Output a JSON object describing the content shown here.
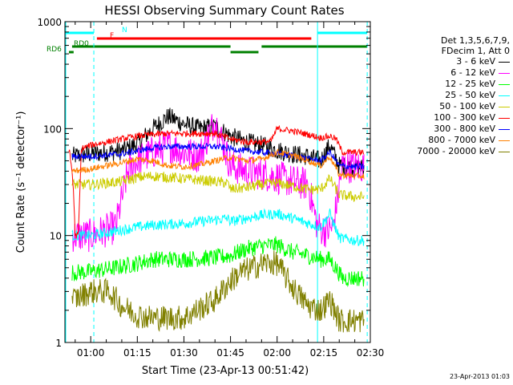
{
  "chart_data": {
    "type": "line",
    "title": "HESSI Observing Summary Count Rates",
    "xlabel": "Start Time (23-Apr-13 00:51:42)",
    "ylabel": "Count Rate (s⁻¹ detector⁻¹)",
    "y_scale": "log",
    "ylim": [
      1,
      1000
    ],
    "xlim_minutes": [
      51.7,
      150
    ],
    "x_ticks": [
      "01:00",
      "01:15",
      "01:30",
      "01:45",
      "02:00",
      "02:15",
      "02:30"
    ],
    "x_tick_minutes": [
      60,
      75,
      90,
      105,
      120,
      135,
      150
    ],
    "y_ticks": [
      "1",
      "10",
      "100",
      "1000"
    ],
    "y_tick_values": [
      1,
      10,
      100,
      1000
    ],
    "grid": false,
    "legend_position": "right",
    "legend_header": [
      "Det 1,3,5,6,7,9,",
      "FDecim 1, Att 0"
    ],
    "series": [
      {
        "name": "3 - 6 keV",
        "color": "#000000",
        "x": [
          54,
          60,
          70,
          75,
          80,
          85,
          90,
          95,
          100,
          105,
          110,
          115,
          120,
          125,
          130,
          134,
          137,
          140,
          145,
          148
        ],
        "values": [
          55,
          58,
          62,
          72,
          100,
          130,
          110,
          100,
          105,
          85,
          75,
          70,
          63,
          58,
          55,
          50,
          70,
          45,
          43,
          43
        ]
      },
      {
        "name": "6 - 12 keV",
        "color": "#ff00ff",
        "x": [
          54,
          60,
          68,
          72,
          75,
          80,
          85,
          90,
          95,
          100,
          105,
          110,
          115,
          120,
          125,
          130,
          133,
          136,
          138,
          141,
          145,
          148
        ],
        "values": [
          10,
          10,
          12,
          40,
          50,
          60,
          70,
          60,
          55,
          120,
          45,
          40,
          38,
          35,
          32,
          30,
          12,
          11,
          12,
          45,
          44,
          44
        ]
      },
      {
        "name": "12 - 25 keV",
        "color": "#00ff00",
        "x": [
          54,
          60,
          68,
          75,
          80,
          90,
          100,
          105,
          110,
          115,
          120,
          125,
          130,
          134,
          137,
          141,
          148
        ],
        "values": [
          4.5,
          4.6,
          5,
          5.5,
          6,
          6,
          6.2,
          6.5,
          7.5,
          8,
          8.2,
          7,
          6.5,
          6,
          6,
          4,
          4
        ]
      },
      {
        "name": "25 - 50 keV",
        "color": "#00ffff",
        "x": [
          54,
          60,
          68,
          75,
          80,
          90,
          100,
          104,
          105,
          110,
          115,
          120,
          125,
          130,
          134,
          137,
          140,
          145,
          148
        ],
        "values": [
          10,
          10,
          11,
          12,
          12.5,
          13,
          14,
          14.5,
          13.5,
          14.5,
          15.5,
          16,
          14.5,
          13,
          12,
          16,
          9.5,
          9,
          9
        ]
      },
      {
        "name": "50 - 100 keV",
        "color": "#cccc00",
        "x": [
          54,
          56,
          60,
          70,
          75,
          80,
          85,
          90,
          95,
          100,
          104,
          105,
          110,
          115,
          120,
          125,
          130,
          134,
          137,
          140,
          145,
          148
        ],
        "values": [
          30,
          30,
          30,
          32,
          35,
          36,
          35,
          34,
          33,
          32,
          31,
          27,
          28,
          30,
          31,
          29,
          27,
          27,
          34,
          24,
          23,
          23
        ]
      },
      {
        "name": "100 - 300 keV",
        "color": "#ff0000",
        "x": [
          53,
          54,
          54.5,
          55,
          56,
          57,
          60,
          70,
          75,
          80,
          85,
          90,
          95,
          100,
          105,
          110,
          115,
          118,
          120,
          125,
          130,
          134,
          137,
          139,
          141,
          145,
          148
        ],
        "values": [
          65,
          40,
          25,
          10,
          10,
          65,
          70,
          80,
          85,
          88,
          90,
          90,
          90,
          90,
          80,
          75,
          75,
          76,
          100,
          95,
          88,
          82,
          85,
          80,
          60,
          60,
          60
        ]
      },
      {
        "name": "300 - 800 keV",
        "color": "#0000ff",
        "x": [
          54,
          60,
          70,
          75,
          80,
          85,
          90,
          95,
          100,
          105,
          110,
          115,
          120,
          125,
          130,
          134,
          137,
          140,
          145,
          148
        ],
        "values": [
          55,
          55,
          58,
          62,
          66,
          68,
          68,
          68,
          68,
          65,
          62,
          60,
          58,
          56,
          52,
          50,
          60,
          45,
          44,
          44
        ]
      },
      {
        "name": "800 - 7000 keV",
        "color": "#ff8000",
        "x": [
          54,
          60,
          65,
          70,
          75,
          80,
          85,
          90,
          95,
          100,
          105,
          110,
          115,
          120,
          125,
          130,
          134,
          137,
          140,
          145,
          148
        ],
        "values": [
          40,
          42,
          45,
          48,
          52,
          50,
          45,
          44,
          46,
          50,
          54,
          50,
          52,
          60,
          56,
          50,
          45,
          55,
          37,
          36,
          36
        ]
      },
      {
        "name": "7000 - 20000 keV",
        "color": "#808000",
        "x": [
          54,
          60,
          66,
          70,
          75,
          80,
          90,
          100,
          104,
          108,
          112,
          116,
          120,
          123,
          126,
          130,
          134,
          137,
          140,
          145,
          148
        ],
        "values": [
          2.5,
          3,
          3,
          2.2,
          1.8,
          1.7,
          1.7,
          2.5,
          3.5,
          4.5,
          5,
          5.5,
          5.5,
          4,
          3,
          2.2,
          2,
          2.5,
          1.6,
          1.6,
          1.6
        ]
      }
    ],
    "flag_annotations": [
      {
        "label": "N",
        "color": "#00ffff",
        "segments": [
          [
            51.7,
            61
          ],
          [
            133,
            149
          ]
        ]
      },
      {
        "label": "F",
        "color": "#ff0000",
        "segments": [
          [
            62,
            131
          ]
        ]
      },
      {
        "label": "RD0",
        "color": "#008000",
        "segments": [
          [
            54,
            105
          ],
          [
            115,
            149
          ]
        ]
      },
      {
        "label": "RD6",
        "color": "#008000",
        "segments": [
          [
            53,
            54.5
          ],
          [
            105,
            114
          ]
        ]
      }
    ],
    "vertical_markers": [
      {
        "style": "solid",
        "color": "#00ffff",
        "x": [
          51.7,
          133
        ]
      },
      {
        "style": "dashed",
        "color": "#00ffff",
        "x": [
          61,
          149
        ]
      }
    ]
  },
  "timestamp": "23-Apr-2013 01:03"
}
